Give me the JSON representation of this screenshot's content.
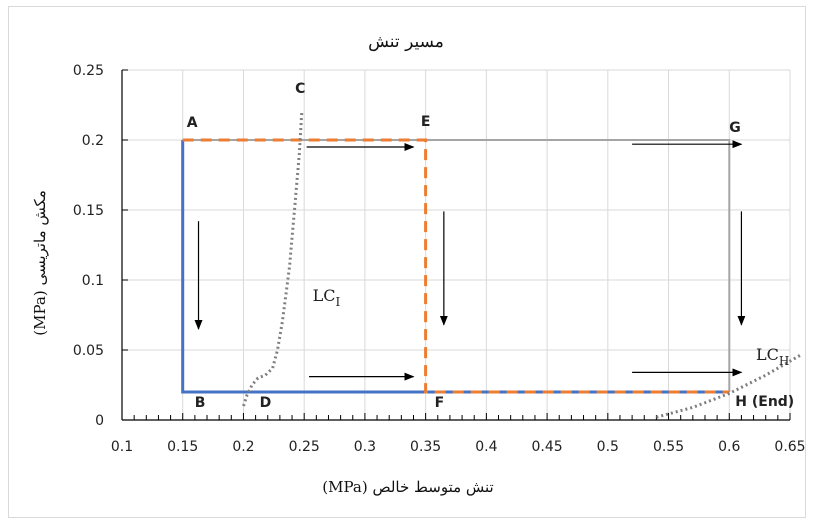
{
  "chart_data": {
    "type": "line",
    "title": "مسیر تنش",
    "xlabel": "تنش متوسط خالص (MPa)",
    "ylabel": "مکش ماتریسی (MPa)",
    "xlim": [
      0.1,
      0.65
    ],
    "ylim": [
      0,
      0.25
    ],
    "x_ticks": [
      "0.1",
      "0.15",
      "0.2",
      "0.25",
      "0.3",
      "0.35",
      "0.4",
      "0.45",
      "0.5",
      "0.55",
      "0.6",
      "0.65"
    ],
    "y_ticks": [
      "0",
      "0.05",
      "0.1",
      "0.15",
      "0.2",
      "0.25"
    ],
    "grid": true,
    "points": [
      {
        "label": "A",
        "x": 0.15,
        "y": 0.2
      },
      {
        "label": "B",
        "x": 0.15,
        "y": 0.02
      },
      {
        "label": "C",
        "x": 0.25,
        "y": 0.22
      },
      {
        "label": "D",
        "x": 0.21,
        "y": 0.02
      },
      {
        "label": "E",
        "x": 0.35,
        "y": 0.2
      },
      {
        "label": "F",
        "x": 0.35,
        "y": 0.02
      },
      {
        "label": "G",
        "x": 0.6,
        "y": 0.2
      },
      {
        "label": "H (End)",
        "x": 0.6,
        "y": 0.02
      }
    ],
    "series": [
      {
        "color": "#4472c4",
        "style": "solid",
        "x": [
          0.15,
          0.15,
          0.6
        ],
        "y": [
          0.2,
          0.02,
          0.02
        ]
      },
      {
        "color": "#a5a5a5",
        "style": "solid",
        "x": [
          0.15,
          0.6,
          0.6
        ],
        "y": [
          0.2,
          0.2,
          0.02
        ]
      },
      {
        "color": "#ed7d31",
        "style": "dashed",
        "x": [
          0.15,
          0.35,
          0.35,
          0.6
        ],
        "y": [
          0.2,
          0.2,
          0.02,
          0.02
        ]
      },
      {
        "name": "LCI",
        "color": "#7f7f7f",
        "style": "dotted",
        "x": [
          0.2,
          0.203,
          0.207,
          0.212,
          0.218,
          0.224,
          0.228,
          0.232,
          0.235,
          0.238,
          0.24,
          0.242,
          0.244,
          0.246,
          0.248
        ],
        "y": [
          0.01,
          0.018,
          0.025,
          0.03,
          0.032,
          0.037,
          0.05,
          0.07,
          0.09,
          0.11,
          0.13,
          0.15,
          0.17,
          0.19,
          0.22
        ]
      },
      {
        "name": "LCH",
        "color": "#7f7f7f",
        "style": "dotted",
        "x": [
          0.54,
          0.57,
          0.6,
          0.63,
          0.66
        ],
        "y": [
          0.002,
          0.009,
          0.019,
          0.032,
          0.047
        ]
      }
    ],
    "lc_labels": [
      {
        "main": "LC",
        "sub": "I",
        "x": 0.257,
        "y": 0.085
      },
      {
        "main": "LC",
        "sub": "H",
        "x": 0.622,
        "y": 0.043
      }
    ],
    "arrows": [
      {
        "x1": 0.252,
        "y1": 0.195,
        "x2": 0.34,
        "y2": 0.195
      },
      {
        "x1": 0.52,
        "y1": 0.197,
        "x2": 0.61,
        "y2": 0.197
      },
      {
        "x1": 0.254,
        "y1": 0.031,
        "x2": 0.34,
        "y2": 0.031
      },
      {
        "x1": 0.52,
        "y1": 0.034,
        "x2": 0.61,
        "y2": 0.034
      },
      {
        "x1": 0.163,
        "y1": 0.142,
        "x2": 0.163,
        "y2": 0.065
      },
      {
        "x1": 0.365,
        "y1": 0.149,
        "x2": 0.365,
        "y2": 0.068
      },
      {
        "x1": 0.61,
        "y1": 0.149,
        "x2": 0.61,
        "y2": 0.068
      }
    ]
  }
}
